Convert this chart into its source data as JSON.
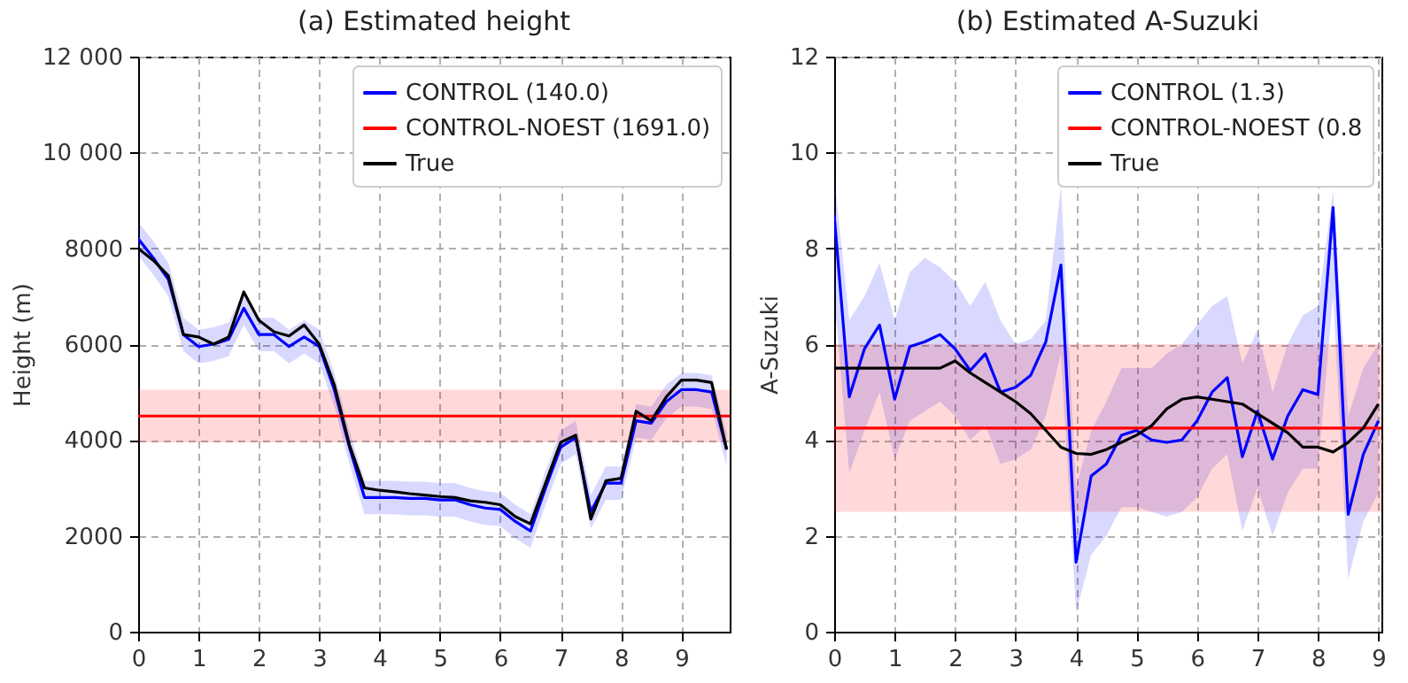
{
  "chart_data": [
    {
      "type": "line",
      "title": "(a) Estimated height",
      "ylabel": "Height (m)",
      "xlim": [
        0,
        9.8
      ],
      "xticks": [
        0,
        1,
        2,
        3,
        4,
        5,
        6,
        7,
        8,
        9
      ],
      "ylim": [
        0,
        12000
      ],
      "yticks": [
        0,
        2000,
        4000,
        6000,
        8000,
        {
          "value": 10000,
          "label": "10 000"
        },
        {
          "value": 12000,
          "label": "12 000"
        }
      ],
      "grid": true,
      "legend": "top right",
      "line_style": "solid",
      "x": [
        0,
        0.25,
        0.5,
        0.75,
        1,
        1.25,
        1.5,
        1.75,
        2,
        2.25,
        2.5,
        2.75,
        3,
        3.25,
        3.5,
        3.75,
        4,
        4.25,
        4.5,
        4.75,
        5,
        5.25,
        5.5,
        5.75,
        6,
        6.25,
        6.5,
        6.75,
        7,
        7.25,
        7.5,
        7.75,
        8,
        8.25,
        8.5,
        8.75,
        9,
        9.25,
        9.5,
        9.75
      ],
      "series": [
        {
          "name": "CONTROL (140.0)",
          "color": "#0000ff",
          "values": [
            8200,
            7800,
            7350,
            6200,
            5950,
            6000,
            6100,
            6750,
            6200,
            6200,
            5950,
            6150,
            5950,
            5050,
            3850,
            2800,
            2800,
            2800,
            2780,
            2780,
            2750,
            2750,
            2650,
            2580,
            2550,
            2300,
            2100,
            3000,
            3850,
            4050,
            2500,
            3100,
            3100,
            4400,
            4350,
            4800,
            5050,
            5050,
            5000,
            3800
          ],
          "lower": [
            7850,
            7450,
            7000,
            5850,
            5600,
            5650,
            5750,
            6400,
            5850,
            5850,
            5600,
            5800,
            5600,
            4700,
            3500,
            2450,
            2450,
            2450,
            2430,
            2430,
            2400,
            2400,
            2300,
            2230,
            2200,
            1950,
            1750,
            2650,
            3500,
            3700,
            2150,
            2750,
            2750,
            4050,
            4000,
            4450,
            4700,
            4700,
            4650,
            3450
          ],
          "upper": [
            8550,
            8150,
            7700,
            6550,
            6300,
            6350,
            6450,
            7100,
            6550,
            6550,
            6300,
            6500,
            6300,
            5400,
            4200,
            3150,
            3150,
            3150,
            3130,
            3130,
            3100,
            3100,
            3000,
            2930,
            2900,
            2650,
            2450,
            3350,
            4200,
            4400,
            2850,
            3450,
            3450,
            4750,
            4700,
            5150,
            5400,
            5400,
            5350,
            4150
          ]
        },
        {
          "name": "CONTROL-NOEST (1691.0)",
          "color": "#ff0000",
          "x": [
            0,
            9.8
          ],
          "values": [
            4500,
            4500
          ],
          "lower": [
            3950,
            3950
          ],
          "upper": [
            5050,
            5050
          ]
        },
        {
          "name": "True",
          "color": "#000000",
          "values": [
            8000,
            7750,
            7430,
            6200,
            6150,
            6000,
            6150,
            7090,
            6500,
            6260,
            6170,
            6400,
            6000,
            5150,
            3900,
            3000,
            2950,
            2920,
            2880,
            2850,
            2820,
            2800,
            2730,
            2700,
            2650,
            2400,
            2250,
            3100,
            3950,
            4100,
            2350,
            3150,
            3200,
            4600,
            4400,
            4900,
            5250,
            5250,
            5200,
            3800
          ]
        }
      ]
    },
    {
      "type": "line",
      "title": "(b) Estimated A-Suzuki",
      "ylabel": "A-Suzuki",
      "xlim": [
        0,
        9.05
      ],
      "xticks": [
        0,
        1,
        2,
        3,
        4,
        5,
        6,
        7,
        8,
        9
      ],
      "ylim": [
        0,
        12
      ],
      "yticks": [
        0,
        2,
        4,
        6,
        8,
        10,
        12
      ],
      "grid": true,
      "legend": "top right",
      "line_style": "solid",
      "x": [
        0,
        0.25,
        0.5,
        0.75,
        1,
        1.25,
        1.5,
        1.75,
        2,
        2.25,
        2.5,
        2.75,
        3,
        3.25,
        3.5,
        3.75,
        4,
        4.25,
        4.5,
        4.75,
        5,
        5.25,
        5.5,
        5.75,
        6,
        6.25,
        6.5,
        6.75,
        7,
        7.25,
        7.5,
        7.75,
        8,
        8.25,
        8.5,
        8.75,
        9
      ],
      "series": [
        {
          "name": "CONTROL (1.3)",
          "color": "#0000ff",
          "values": [
            8.7,
            4.9,
            5.9,
            6.4,
            4.85,
            5.95,
            6.05,
            6.2,
            5.9,
            5.45,
            5.8,
            5.0,
            5.1,
            5.35,
            6.05,
            7.65,
            1.45,
            3.25,
            3.5,
            4.1,
            4.2,
            4.0,
            3.95,
            4.0,
            4.4,
            5.0,
            5.3,
            3.65,
            4.6,
            3.6,
            4.5,
            5.05,
            4.95,
            8.85,
            2.45,
            3.7,
            4.4
          ],
          "lower": [
            7,
            3.3,
            4.2,
            5,
            3.6,
            4.4,
            4.6,
            4.8,
            4.5,
            4.0,
            4.3,
            3.5,
            3.6,
            3.8,
            4.5,
            5.8,
            0.4,
            1.6,
            2.0,
            2.6,
            2.6,
            2.5,
            2.4,
            2.5,
            2.8,
            3.4,
            3.7,
            2.1,
            3.0,
            2.0,
            2.9,
            3.4,
            3.4,
            7.0,
            1.1,
            2.3,
            2.9
          ],
          "upper": [
            9.5,
            6.5,
            7,
            7.7,
            6.5,
            7.5,
            7.8,
            7.6,
            7.3,
            6.8,
            7.3,
            6.5,
            6.0,
            6.1,
            6.5,
            9.3,
            3.0,
            4.2,
            4.8,
            5.5,
            5.5,
            5.5,
            5.8,
            6.0,
            6.4,
            6.8,
            7.0,
            5.6,
            6.3,
            5.0,
            6.0,
            6.6,
            6.8,
            9.2,
            4.5,
            5.5,
            6.0
          ]
        },
        {
          "name": "CONTROL-NOEST (0.8",
          "color": "#ff0000",
          "x": [
            0,
            9.05
          ],
          "values": [
            4.25,
            4.25
          ],
          "lower": [
            2.5,
            2.5
          ],
          "upper": [
            6.0,
            6.0
          ]
        },
        {
          "name": "True",
          "color": "#000000",
          "values": [
            5.5,
            5.5,
            5.5,
            5.5,
            5.5,
            5.5,
            5.5,
            5.5,
            5.65,
            5.4,
            5.2,
            5.0,
            4.8,
            4.55,
            4.2,
            3.85,
            3.72,
            3.7,
            3.8,
            3.95,
            4.1,
            4.3,
            4.65,
            4.85,
            4.9,
            4.85,
            4.8,
            4.75,
            4.55,
            4.35,
            4.15,
            3.85,
            3.85,
            3.75,
            3.95,
            4.25,
            4.75
          ]
        }
      ]
    }
  ]
}
